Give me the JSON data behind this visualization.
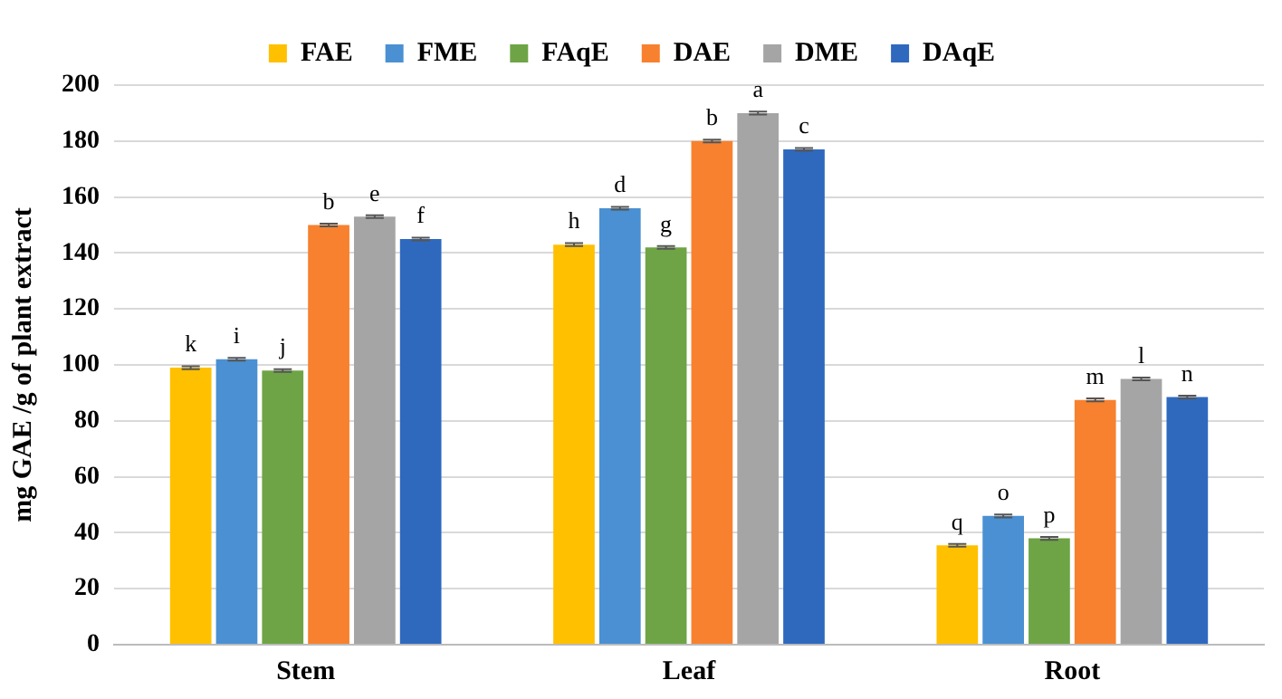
{
  "chart_data": {
    "type": "bar",
    "ylabel": "mg GAE /g of plant extract",
    "categories": [
      "Stem",
      "Leaf",
      "Root"
    ],
    "series": [
      {
        "name": "FAE",
        "color": "#ffc000",
        "values": [
          99,
          143,
          35.5
        ],
        "errors": [
          0.5,
          0.5,
          0.5
        ],
        "value_labels": [
          "k",
          "h",
          "q"
        ]
      },
      {
        "name": "FME",
        "color": "#4a90d2",
        "values": [
          102,
          156,
          46
        ],
        "errors": [
          0.5,
          0.5,
          0.5
        ],
        "value_labels": [
          "i",
          "d",
          "o"
        ]
      },
      {
        "name": "FAqE",
        "color": "#6ea446",
        "values": [
          98,
          142,
          38
        ],
        "errors": [
          0.5,
          0.5,
          0.5
        ],
        "value_labels": [
          "j",
          "g",
          "p"
        ]
      },
      {
        "name": "DAE",
        "color": "#f7812e",
        "values": [
          150,
          180,
          87.5
        ],
        "errors": [
          0.5,
          0.5,
          0.5
        ],
        "value_labels": [
          "b",
          "b",
          "m"
        ]
      },
      {
        "name": "DME",
        "color": "#a5a5a5",
        "values": [
          153,
          190,
          95
        ],
        "errors": [
          0.5,
          0.5,
          0.5
        ],
        "value_labels": [
          "e",
          "a",
          "l"
        ]
      },
      {
        "name": "DAqE",
        "color": "#2e69be",
        "values": [
          145,
          177,
          88.5
        ],
        "errors": [
          0.5,
          0.5,
          0.5
        ],
        "value_labels": [
          "f",
          "c",
          "n"
        ]
      }
    ],
    "ylim": [
      0,
      200
    ],
    "yticks": [
      0,
      20,
      40,
      60,
      80,
      100,
      120,
      140,
      160,
      180,
      200
    ],
    "grid": "y",
    "legend": "top"
  }
}
